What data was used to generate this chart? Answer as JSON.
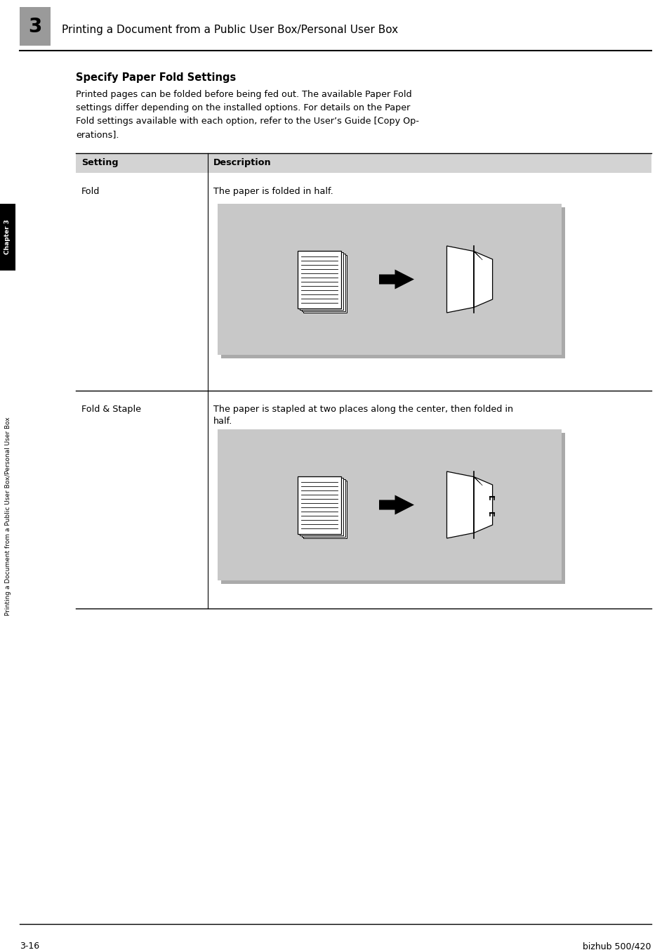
{
  "bg_color": "#ffffff",
  "chapter_box_color": "#9a9a9a",
  "chapter_number": "3",
  "header_title": "Printing a Document from a Public User Box/Personal User Box",
  "section_title": "Specify Paper Fold Settings",
  "intro_text": "Printed pages can be folded before being fed out. The available Paper Fold\nsettings differ depending on the installed options. For details on the Paper\nFold settings available with each option, refer to the User’s Guide [Copy Op-\nerations].",
  "col1_header": "Setting",
  "col2_header": "Description",
  "row1_setting": "Fold",
  "row1_desc": "The paper is folded in half.",
  "row2_setting": "Fold & Staple",
  "row2_desc": "The paper is stapled at two places along the center, then folded in\nhalf.",
  "sidebar_chapter": "Chapter 3",
  "sidebar_text": "Printing a Document from a Public User Box/Personal User Box",
  "footer_left": "3-16",
  "footer_right": "bizhub 500/420",
  "table_header_bg": "#d3d3d3",
  "image_bg": "#c8c8c8",
  "sidebar_black_bg": "#000000",
  "sidebar_white_text": "#ffffff"
}
